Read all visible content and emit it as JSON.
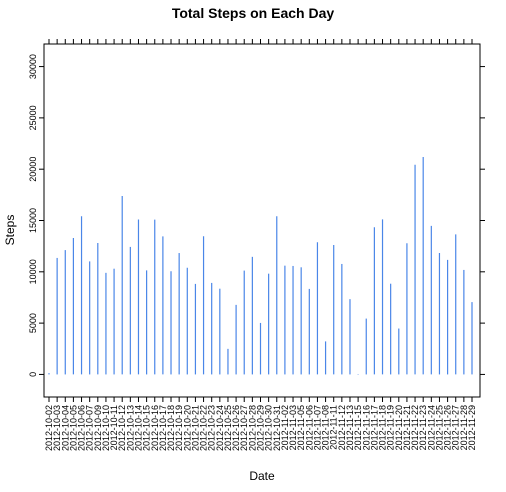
{
  "chart_data": {
    "type": "bar",
    "title": "Total Steps on Each Day",
    "xlabel": "Date",
    "ylabel": "Steps",
    "ylim": [
      -2200,
      32200
    ],
    "yticks": [
      0,
      5000,
      10000,
      15000,
      20000,
      25000,
      30000
    ],
    "categories": [
      "2012-10-02",
      "2012-10-03",
      "2012-10-04",
      "2012-10-05",
      "2012-10-06",
      "2012-10-07",
      "2012-10-09",
      "2012-10-10",
      "2012-10-11",
      "2012-10-12",
      "2012-10-13",
      "2012-10-14",
      "2012-10-15",
      "2012-10-16",
      "2012-10-17",
      "2012-10-18",
      "2012-10-19",
      "2012-10-20",
      "2012-10-21",
      "2012-10-22",
      "2012-10-23",
      "2012-10-24",
      "2012-10-25",
      "2012-10-26",
      "2012-10-27",
      "2012-10-28",
      "2012-10-29",
      "2012-10-30",
      "2012-10-31",
      "2012-11-02",
      "2012-11-03",
      "2012-11-05",
      "2012-11-06",
      "2012-11-07",
      "2012-11-08",
      "2012-11-11",
      "2012-11-12",
      "2012-11-13",
      "2012-11-15",
      "2012-11-16",
      "2012-11-17",
      "2012-11-18",
      "2012-11-19",
      "2012-11-20",
      "2012-11-21",
      "2012-11-22",
      "2012-11-23",
      "2012-11-24",
      "2012-11-25",
      "2012-11-26",
      "2012-11-27",
      "2012-11-28",
      "2012-11-29"
    ],
    "values": [
      126,
      11352,
      12116,
      13294,
      15420,
      11015,
      12811,
      9900,
      10304,
      17382,
      12426,
      15098,
      10139,
      15084,
      13452,
      10056,
      11829,
      10395,
      8821,
      13460,
      8918,
      8355,
      2492,
      6778,
      10119,
      11458,
      5018,
      9819,
      15414,
      10600,
      10571,
      10439,
      8334,
      12883,
      3219,
      12608,
      10765,
      7336,
      41,
      5441,
      14339,
      15110,
      8841,
      4472,
      12787,
      20427,
      21194,
      14478,
      11834,
      11162,
      13646,
      10183,
      7047
    ],
    "grid": false,
    "color": "#4a86e8"
  }
}
